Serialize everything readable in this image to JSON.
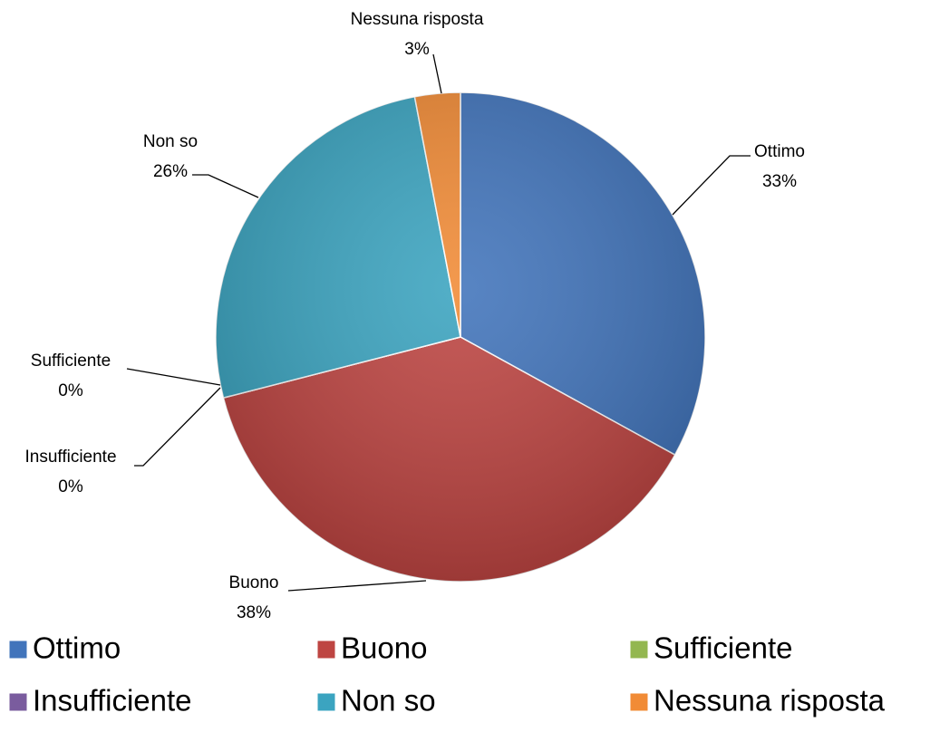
{
  "chart_data": {
    "type": "pie",
    "categories": [
      "Ottimo",
      "Buono",
      "Sufficiente",
      "Insufficiente",
      "Non so",
      "Nessuna risposta"
    ],
    "values": [
      33,
      38,
      0,
      0,
      26,
      3
    ],
    "value_labels": [
      "33%",
      "38%",
      "0%",
      "0%",
      "26%",
      "3%"
    ],
    "colors": [
      "#4174bb",
      "#be4542",
      "#93b750",
      "#7a5c9e",
      "#3ba4c0",
      "#f18b36"
    ]
  }
}
